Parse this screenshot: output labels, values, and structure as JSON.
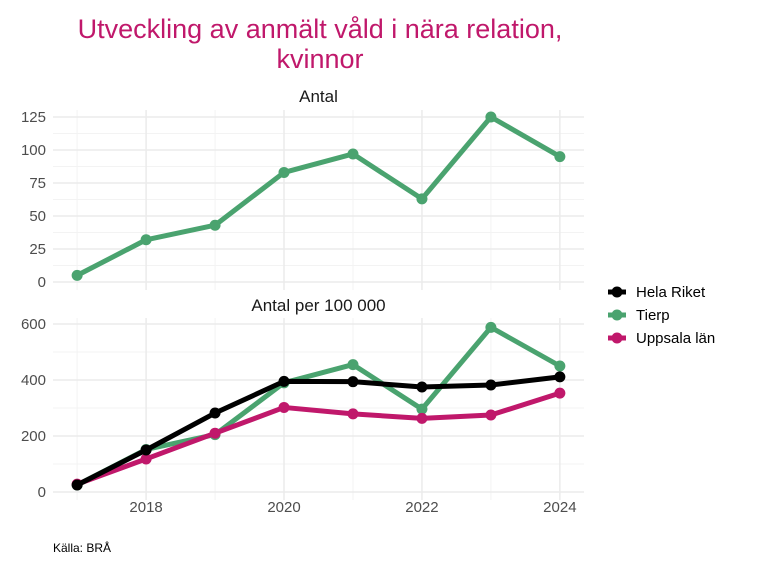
{
  "chart_data": {
    "type": "line",
    "title": "Utveckling av anmält våld i nära relation, kvinnor",
    "title_lines": [
      "Utveckling av anmält våld i nära relation,",
      "kvinnor"
    ],
    "caption": "Källa: BRÅ",
    "x": [
      2017,
      2018,
      2019,
      2020,
      2021,
      2022,
      2023,
      2024
    ],
    "x_ticks": [
      2018,
      2020,
      2022,
      2024
    ],
    "x_tick_labels": [
      "2018",
      "2020",
      "2022",
      "2024"
    ],
    "xlim": [
      2016.65,
      2024.35
    ],
    "legend": {
      "position": "right",
      "entries": [
        {
          "name": "Hela Riket",
          "color": "#000000"
        },
        {
          "name": "Tierp",
          "color": "#4aa36f"
        },
        {
          "name": "Uppsala län",
          "color": "#c0186b"
        }
      ]
    },
    "panels": [
      {
        "strip": "Antal",
        "ylim": [
          0,
          125
        ],
        "y_ticks": [
          0,
          25,
          50,
          75,
          100,
          125
        ],
        "y_tick_labels": [
          "0",
          "25",
          "50",
          "75",
          "100",
          "125"
        ],
        "grid": true,
        "series": [
          {
            "name": "Tierp",
            "color": "#4aa36f",
            "values": [
              5,
              32,
              43,
              83,
              97,
              63,
              125,
              95
            ]
          }
        ]
      },
      {
        "strip": "Antal per 100 000",
        "ylim": [
          0,
          600
        ],
        "y_ticks": [
          0,
          200,
          400,
          600
        ],
        "y_tick_labels": [
          "0",
          "200",
          "400",
          "600"
        ],
        "grid": true,
        "series": [
          {
            "name": "Tierp",
            "color": "#4aa36f",
            "values": [
              25,
              152,
              205,
              390,
              455,
              296,
              588,
              450
            ]
          },
          {
            "name": "Uppsala län",
            "color": "#c0186b",
            "values": [
              28,
              118,
              210,
              302,
              279,
              263,
              275,
              353
            ]
          },
          {
            "name": "Hela Riket",
            "color": "#000000",
            "values": [
              25,
              150,
              282,
              395,
              394,
              375,
              382,
              411
            ]
          }
        ]
      }
    ]
  }
}
